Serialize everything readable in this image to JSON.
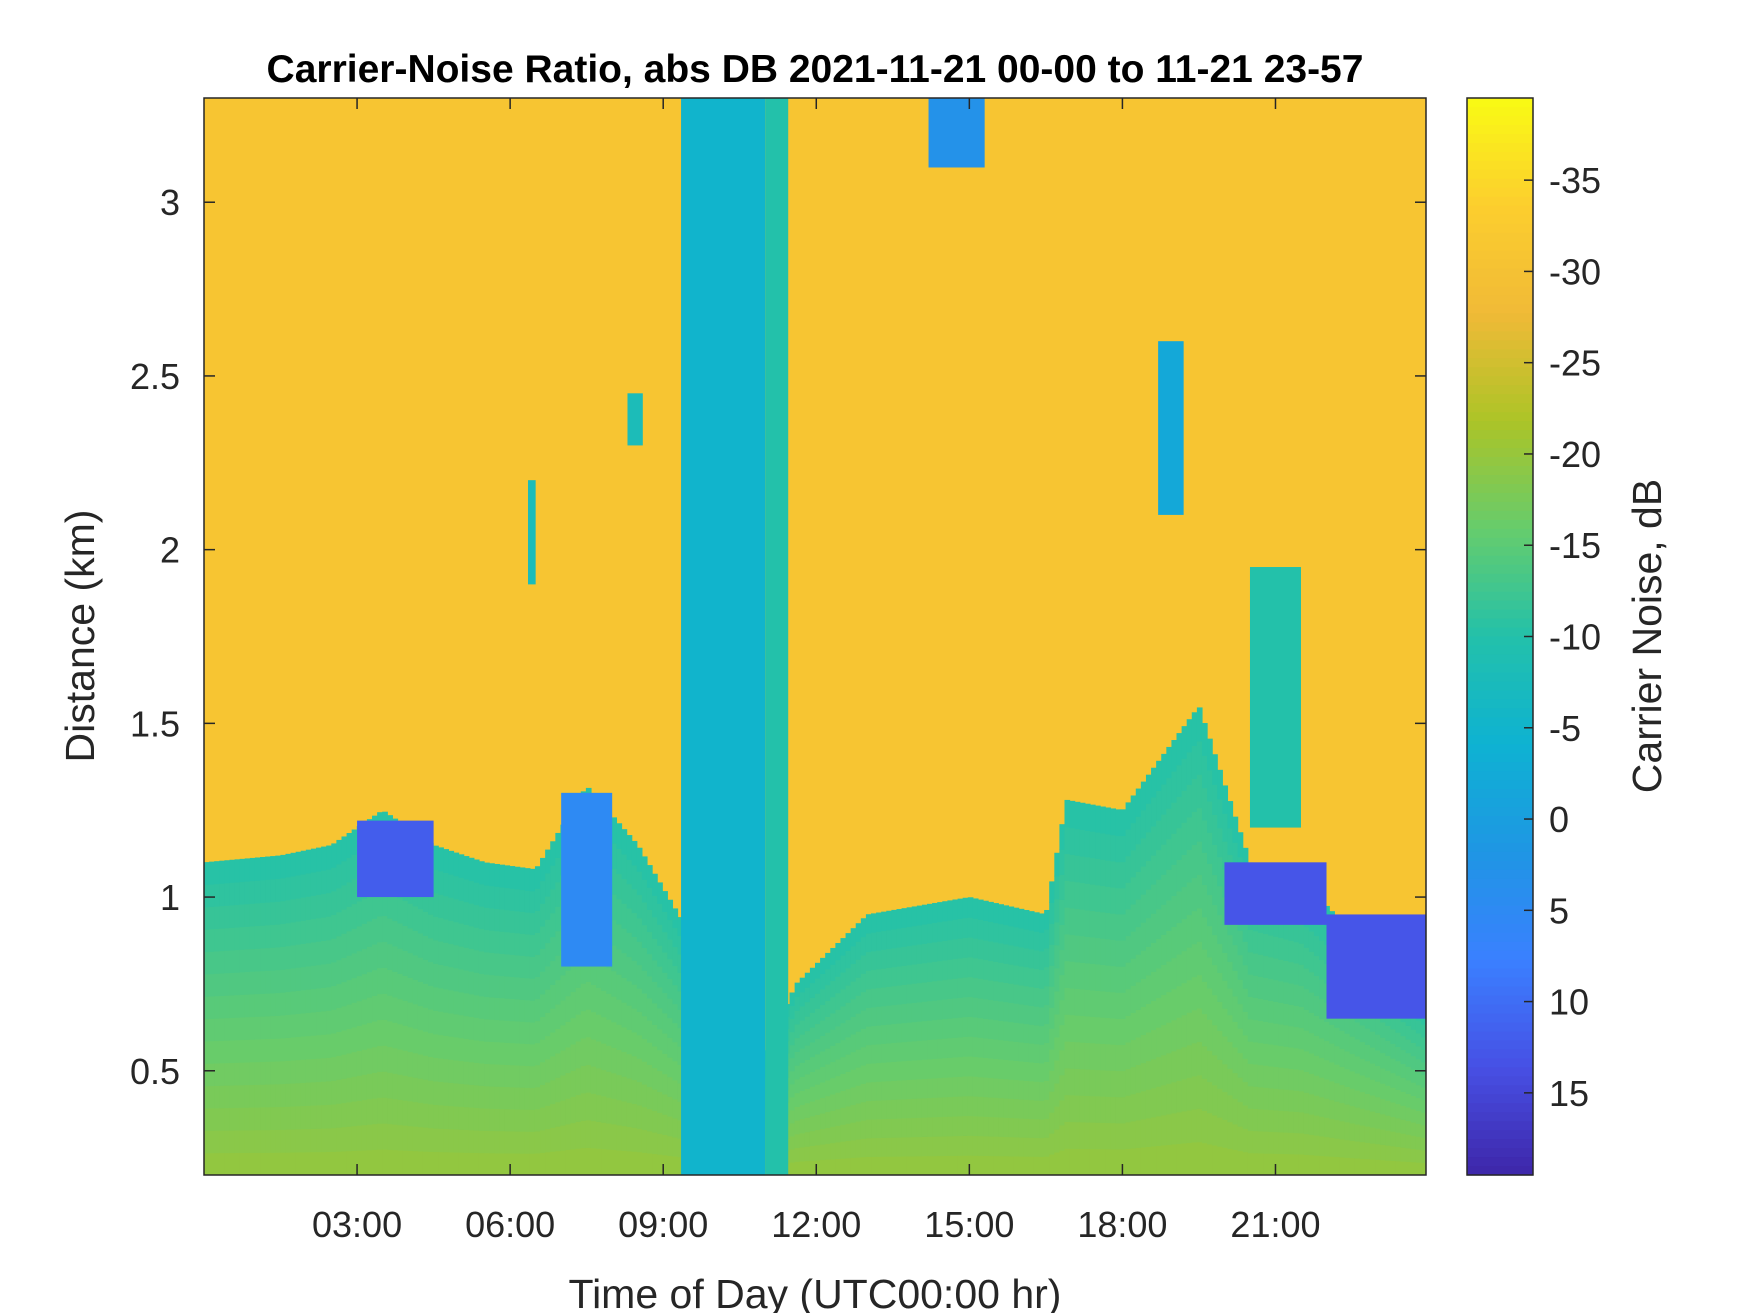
{
  "chart_data": {
    "type": "heatmap",
    "title": "Carrier-Noise Ratio, abs DB 2021-11-21 00-00 to 11-21 23-57",
    "xlabel": "Time of Day (UTC00:00 hr)",
    "ylabel": "Distance (km)",
    "colorbar_label": "Carrier Noise, dB",
    "colormap": "parula",
    "xlim_hours": [
      0,
      23.95
    ],
    "ylim_km": [
      0.2,
      3.3
    ],
    "clim_db": [
      -39.5,
      19.5
    ],
    "colorbar_reversed": true,
    "x_ticks": [
      {
        "value": 3,
        "label": "03:00"
      },
      {
        "value": 6,
        "label": "06:00"
      },
      {
        "value": 9,
        "label": "09:00"
      },
      {
        "value": 12,
        "label": "12:00"
      },
      {
        "value": 15,
        "label": "15:00"
      },
      {
        "value": 18,
        "label": "18:00"
      },
      {
        "value": 21,
        "label": "21:00"
      }
    ],
    "y_ticks": [
      {
        "value": 0.5,
        "label": "0.5"
      },
      {
        "value": 1,
        "label": "1"
      },
      {
        "value": 1.5,
        "label": "1.5"
      },
      {
        "value": 2,
        "label": "2"
      },
      {
        "value": 2.5,
        "label": "2.5"
      },
      {
        "value": 3,
        "label": "3"
      }
    ],
    "colorbar_ticks": [
      {
        "value": 15,
        "label": "15"
      },
      {
        "value": 10,
        "label": "10"
      },
      {
        "value": 5,
        "label": "5"
      },
      {
        "value": 0,
        "label": "0"
      },
      {
        "value": -5,
        "label": "-5"
      },
      {
        "value": -10,
        "label": "-10"
      },
      {
        "value": -15,
        "label": "-15"
      },
      {
        "value": -20,
        "label": "-20"
      },
      {
        "value": -25,
        "label": "-25"
      },
      {
        "value": -30,
        "label": "-30"
      },
      {
        "value": -35,
        "label": "-35"
      }
    ],
    "background_db": -31,
    "boundary_layer": {
      "time_h": [
        0,
        1.5,
        2.5,
        3.5,
        4.5,
        5.5,
        6.5,
        7.5,
        8.5,
        9.5,
        11.0,
        11.6,
        13,
        15,
        16.5,
        16.9,
        18,
        19.5,
        20.5,
        21.5,
        22.5,
        23.95
      ],
      "top_km": [
        1.1,
        1.12,
        1.15,
        1.25,
        1.15,
        1.1,
        1.08,
        1.32,
        1.15,
        0.9,
        0.55,
        0.75,
        0.95,
        1.0,
        0.95,
        1.28,
        1.25,
        1.55,
        1.1,
        1.05,
        0.9,
        0.7
      ],
      "db_near_surface": -20,
      "db_at_top": -10
    },
    "features": [
      {
        "name": "vertical band",
        "t0": 9.35,
        "t1": 11.0,
        "z0": 0.2,
        "z1": 3.3,
        "db": -5
      },
      {
        "name": "vertical band",
        "t0": 11.0,
        "t1": 11.45,
        "z0": 0.2,
        "z1": 3.3,
        "db": -10
      },
      {
        "name": "cloud patch",
        "t0": 3.0,
        "t1": 4.5,
        "z0": 1.0,
        "z1": 1.22,
        "db": 12
      },
      {
        "name": "cloud patch",
        "t0": 7.0,
        "t1": 8.0,
        "z0": 0.8,
        "z1": 1.3,
        "db": 5
      },
      {
        "name": "cloud patch",
        "t0": 20.0,
        "t1": 22.0,
        "z0": 0.92,
        "z1": 1.1,
        "db": 13
      },
      {
        "name": "cloud patch",
        "t0": 22.0,
        "t1": 23.95,
        "z0": 0.65,
        "z1": 0.95,
        "db": 13
      },
      {
        "name": "cloud patch",
        "t0": 14.2,
        "t1": 15.3,
        "z0": 3.1,
        "z1": 3.3,
        "db": 3
      },
      {
        "name": "cloud patch",
        "t0": 18.7,
        "t1": 19.2,
        "z0": 2.1,
        "z1": 2.6,
        "db": -2
      },
      {
        "name": "cloud patch",
        "t0": 8.3,
        "t1": 8.6,
        "z0": 2.3,
        "z1": 2.45,
        "db": -8
      },
      {
        "name": "cloud patch",
        "t0": 6.35,
        "t1": 6.5,
        "z0": 1.9,
        "z1": 2.2,
        "db": -8
      },
      {
        "name": "cloud patch",
        "t0": 20.5,
        "t1": 21.5,
        "z0": 1.2,
        "z1": 1.95,
        "db": -10
      }
    ]
  }
}
